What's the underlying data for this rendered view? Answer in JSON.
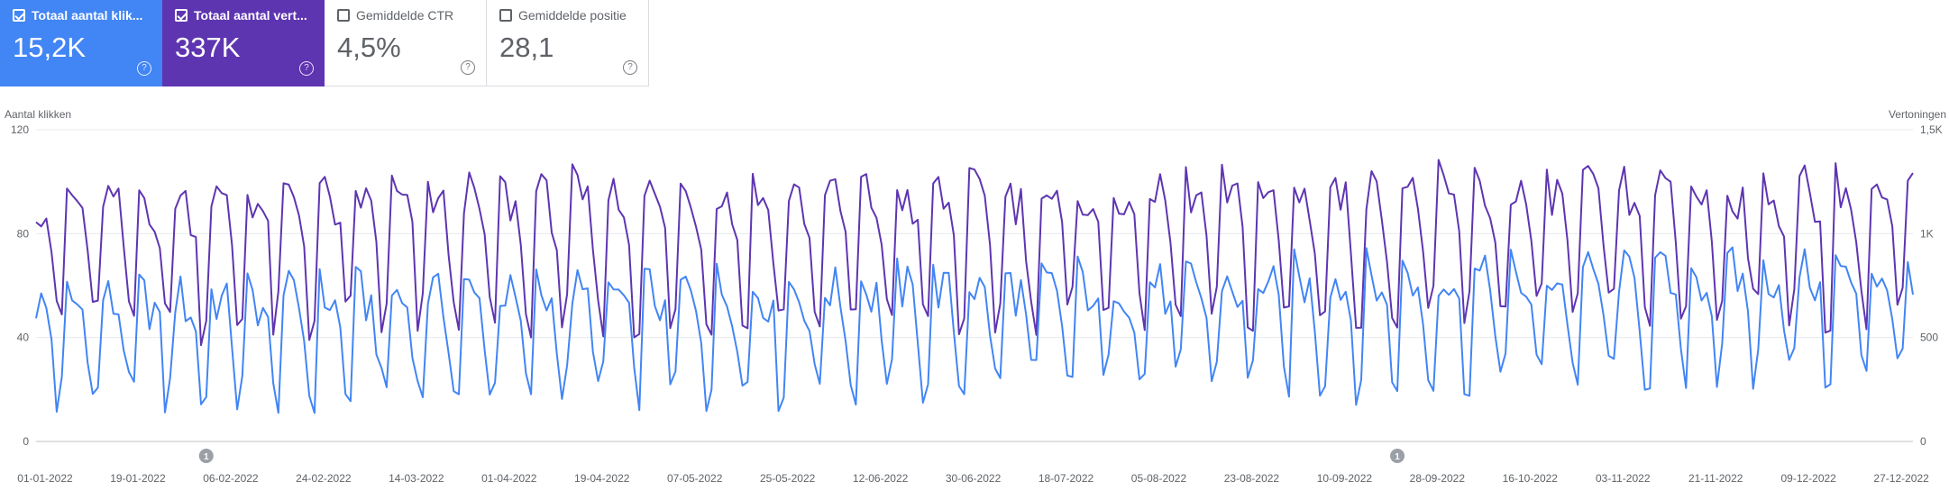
{
  "cards": [
    {
      "label": "Totaal aantal klik...",
      "value": "15,2K",
      "checked": true
    },
    {
      "label": "Totaal aantal vert...",
      "value": "337K",
      "checked": true
    },
    {
      "label": "Gemiddelde CTR",
      "value": "4,5%",
      "checked": false
    },
    {
      "label": "Gemiddelde positie",
      "value": "28,1",
      "checked": false
    }
  ],
  "colors": {
    "clicks": "#4285f4",
    "impressions": "#5e35b1",
    "grid": "#e8eaed",
    "axis_text": "#5f6368"
  },
  "chart_data": {
    "type": "line",
    "ylabel": "Aantal klikken",
    "y2label": "Vertoningen",
    "ylim": [
      0,
      120
    ],
    "y2lim": [
      0,
      1500
    ],
    "y_ticks": [
      "0",
      "40",
      "80",
      "120"
    ],
    "y2_ticks": [
      "0",
      "500",
      "1K",
      "1,5K"
    ],
    "x_range": [
      "2022-01-01",
      "2022-12-31"
    ],
    "x_tick_labels": [
      "01-01-2022",
      "19-01-2022",
      "06-02-2022",
      "24-02-2022",
      "14-03-2022",
      "01-04-2022",
      "19-04-2022",
      "07-05-2022",
      "25-05-2022",
      "12-06-2022",
      "30-06-2022",
      "18-07-2022",
      "05-08-2022",
      "23-08-2022",
      "10-09-2022",
      "28-09-2022",
      "16-10-2022",
      "03-11-2022",
      "21-11-2022",
      "09-12-2022",
      "27-12-2022"
    ],
    "annotations": [
      {
        "date": "2022-02-03",
        "label": "1"
      },
      {
        "date": "2022-09-22",
        "label": "1"
      }
    ],
    "series_shape": {
      "clicks": {
        "base_start": 30,
        "base_end": 42,
        "weekly_peak": 26,
        "weekly_trough": 14
      },
      "impressions": {
        "base_start": 900,
        "base_end": 950,
        "weekly_peak": 300,
        "weekly_trough": 330
      }
    },
    "series": [
      {
        "name": "Totaal aantal klikken",
        "axis": "left",
        "color": "#4285f4"
      },
      {
        "name": "Totaal aantal vertoningen",
        "axis": "right",
        "color": "#5e35b1"
      }
    ]
  }
}
